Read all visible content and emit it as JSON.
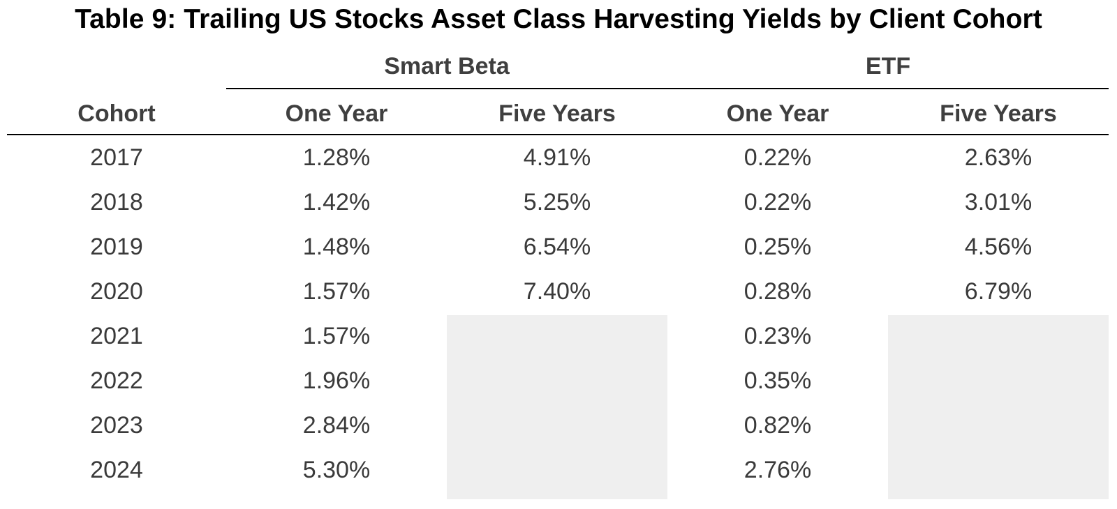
{
  "title": "Table 9: Trailing US Stocks Asset Class Harvesting Yields by Client Cohort",
  "groups": [
    {
      "label": "Smart Beta"
    },
    {
      "label": "ETF"
    }
  ],
  "columns": [
    "Cohort",
    "One Year",
    "Five Years",
    "One Year",
    "Five Years"
  ],
  "rows": [
    {
      "cohort": "2017",
      "sb_one": "1.28%",
      "sb_five": "4.91%",
      "etf_one": "0.22%",
      "etf_five": "2.63%"
    },
    {
      "cohort": "2018",
      "sb_one": "1.42%",
      "sb_five": "5.25%",
      "etf_one": "0.22%",
      "etf_five": "3.01%"
    },
    {
      "cohort": "2019",
      "sb_one": "1.48%",
      "sb_five": "6.54%",
      "etf_one": "0.25%",
      "etf_five": "4.56%"
    },
    {
      "cohort": "2020",
      "sb_one": "1.57%",
      "sb_five": "7.40%",
      "etf_one": "0.28%",
      "etf_five": "6.79%"
    },
    {
      "cohort": "2021",
      "sb_one": "1.57%",
      "sb_five": "",
      "etf_one": "0.23%",
      "etf_five": ""
    },
    {
      "cohort": "2022",
      "sb_one": "1.96%",
      "sb_five": "",
      "etf_one": "0.35%",
      "etf_five": ""
    },
    {
      "cohort": "2023",
      "sb_one": "2.84%",
      "sb_five": "",
      "etf_one": "0.82%",
      "etf_five": ""
    },
    {
      "cohort": "2024",
      "sb_one": "5.30%",
      "sb_five": "",
      "etf_one": "2.76%",
      "etf_five": ""
    }
  ],
  "colors": {
    "text": "#3a3a3a",
    "rule": "#000000",
    "unavailable_shade": "#efefef"
  }
}
